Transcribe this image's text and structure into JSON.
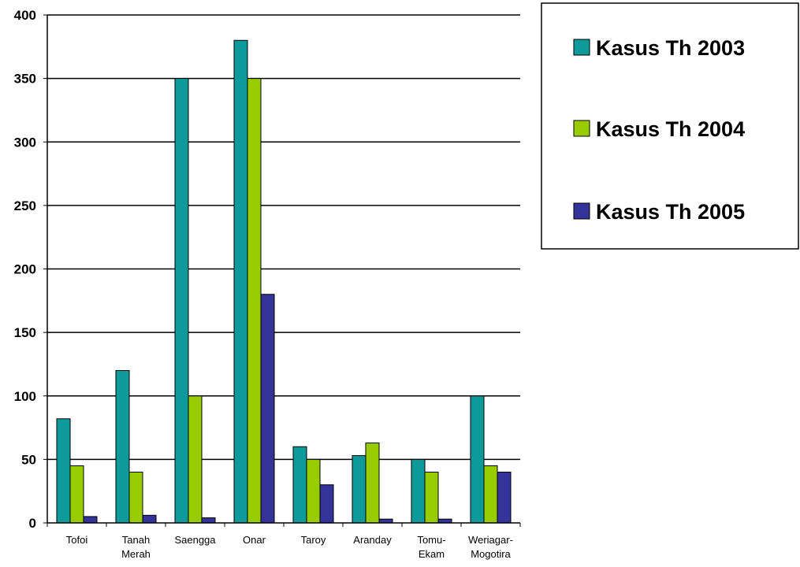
{
  "chart_data": {
    "type": "bar",
    "categories": [
      [
        "Tofoi"
      ],
      [
        "Tanah",
        "Merah"
      ],
      [
        "Saengga"
      ],
      [
        "Onar"
      ],
      [
        "Taroy"
      ],
      [
        "Aranday"
      ],
      [
        "Tomu-",
        "Ekam"
      ],
      [
        "Weriagar-",
        "Mogotira"
      ]
    ],
    "series": [
      {
        "name": "Kasus Th 2003",
        "color": "#0E9A9A",
        "values": [
          82,
          120,
          350,
          380,
          60,
          53,
          50,
          100
        ]
      },
      {
        "name": "Kasus Th 2004",
        "color": "#99CC00",
        "values": [
          45,
          40,
          100,
          350,
          50,
          63,
          40,
          45
        ]
      },
      {
        "name": "Kasus Th 2005",
        "color": "#333399",
        "values": [
          5,
          6,
          4,
          180,
          30,
          3,
          3,
          40
        ]
      }
    ],
    "yticks": [
      "0",
      "50",
      "100",
      "150",
      "200",
      "250",
      "300",
      "350",
      "400"
    ],
    "ylim": [
      0,
      400
    ],
    "grid": true,
    "legend_position": "right"
  }
}
